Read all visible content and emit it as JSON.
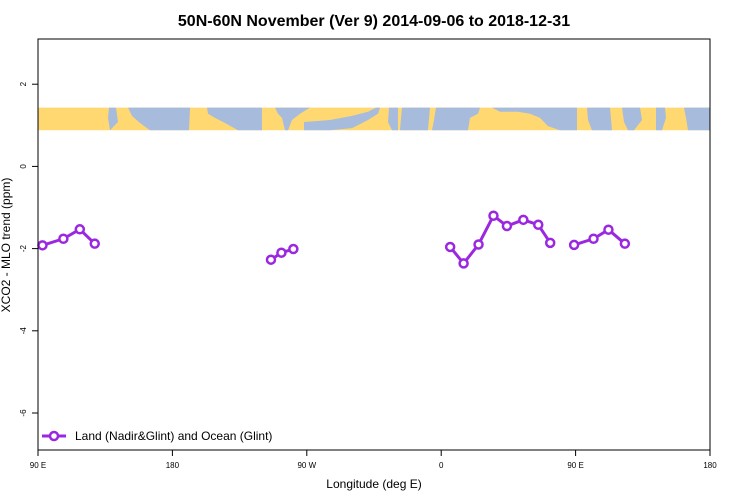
{
  "chart_data": {
    "type": "line",
    "title": "50N-60N November (Ver 9)   2014-09-06 to 2018-12-31",
    "xlabel": "Longitude (deg E)",
    "ylabel": "XCO2 - MLO trend (ppm)",
    "x_ticks": [
      {
        "value": 90,
        "label": "90 E"
      },
      {
        "value": 180,
        "label": "180"
      },
      {
        "value": 270,
        "label": "90 W"
      },
      {
        "value": 360,
        "label": "0"
      },
      {
        "value": 450,
        "label": "90 E"
      },
      {
        "value": 540,
        "label": "180"
      }
    ],
    "y_ticks": [
      2,
      0,
      -2,
      -4,
      -6
    ],
    "xlim": [
      90,
      540
    ],
    "ylim": [
      -6.9,
      3.1
    ],
    "grid": false,
    "legend_position": "bottom-left",
    "map_strip": {
      "y_top": 1.43,
      "y_bottom": 0.88,
      "land_color": "#ffd872",
      "ocean_color": "#a7bbdc"
    },
    "series": [
      {
        "name": "Land (Nadir&Glint) and Ocean (Glint)",
        "color": "#9b28e0",
        "segments": [
          [
            [
              93,
              -1.92
            ],
            [
              107,
              -1.76
            ],
            [
              118,
              -1.53
            ],
            [
              128,
              -1.88
            ]
          ],
          [
            [
              246,
              -2.27
            ],
            [
              253,
              -2.1
            ],
            [
              261,
              -2.01
            ]
          ],
          [
            [
              366,
              -1.96
            ],
            [
              375,
              -2.36
            ],
            [
              385,
              -1.9
            ],
            [
              395,
              -1.2
            ],
            [
              404,
              -1.45
            ],
            [
              415,
              -1.3
            ],
            [
              425,
              -1.42
            ],
            [
              433,
              -1.86
            ]
          ],
          [
            [
              449,
              -1.91
            ],
            [
              462,
              -1.76
            ],
            [
              472,
              -1.54
            ],
            [
              483,
              -1.88
            ]
          ]
        ]
      }
    ]
  }
}
